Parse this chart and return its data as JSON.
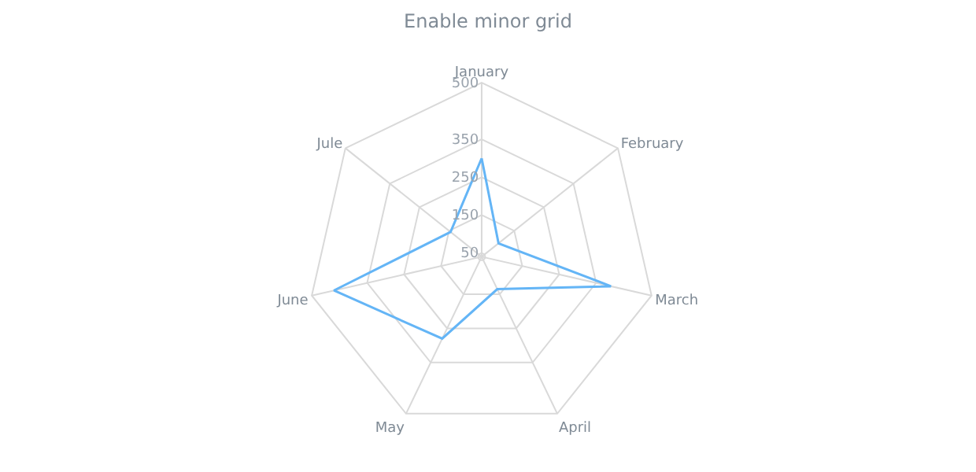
{
  "chart_data": {
    "type": "radar",
    "title": "Enable minor grid",
    "categories": [
      "January",
      "February",
      "March",
      "April",
      "May",
      "June",
      "Jule"
    ],
    "series": [
      {
        "color": "#64b5f6",
        "values": [
          300,
          97,
          390,
          135,
          280,
          440,
          145
        ]
      }
    ],
    "ylim": [
      40,
      500
    ],
    "yticks": [
      50,
      150,
      250,
      350,
      500
    ],
    "grid": true,
    "marker": "none"
  }
}
